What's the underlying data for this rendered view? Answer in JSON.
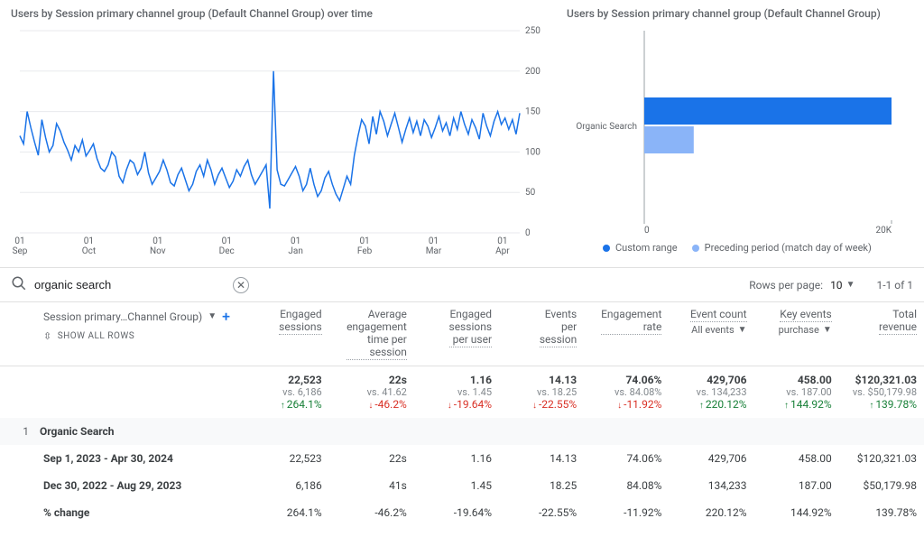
{
  "line_chart": {
    "title": "Users by Session primary channel group (Default Channel Group) over time",
    "type": "line",
    "y": {
      "min": 0,
      "max": 250,
      "ticks": [
        0,
        50,
        100,
        150,
        200,
        250
      ]
    },
    "x_ticks": [
      "01\nSep",
      "01\nOct",
      "01\nNov",
      "01\nDec",
      "01\nJan",
      "01\nFeb",
      "01\nMar",
      "01\nApr"
    ],
    "line_color": "#1a73e8",
    "grid_color": "#e8eaed",
    "values": [
      120,
      110,
      150,
      130,
      112,
      96,
      140,
      118,
      100,
      108,
      135,
      126,
      112,
      102,
      90,
      108,
      100,
      115,
      95,
      102,
      110,
      92,
      80,
      76,
      84,
      100,
      94,
      70,
      62,
      78,
      90,
      86,
      72,
      80,
      100,
      74,
      60,
      68,
      76,
      90,
      78,
      62,
      58,
      72,
      80,
      66,
      52,
      60,
      76,
      84,
      70,
      90,
      78,
      60,
      72,
      80,
      68,
      56,
      64,
      78,
      70,
      82,
      90,
      72,
      60,
      68,
      76,
      84,
      30,
      200,
      78,
      60,
      58,
      66,
      74,
      82,
      70,
      52,
      60,
      80,
      60,
      45,
      52,
      68,
      76,
      60,
      48,
      40,
      55,
      70,
      60,
      96,
      120,
      140,
      132,
      110,
      144,
      122,
      150,
      138,
      120,
      134,
      148,
      130,
      112,
      128,
      142,
      124,
      138,
      120,
      140,
      132,
      118,
      130,
      144,
      126,
      136,
      120,
      142,
      128,
      150,
      134,
      122,
      140,
      130,
      116,
      148,
      132,
      120,
      138,
      150,
      134,
      142,
      128,
      140,
      122,
      148
    ]
  },
  "bar_chart": {
    "title": "Users by Session primary channel group (Default Channel Group)",
    "type": "bar",
    "category": "Organic Search",
    "main_value": 20000,
    "prev_value": 4000,
    "x": {
      "min": 0,
      "max": 20000,
      "ticks": [
        0,
        20000
      ],
      "tick_labels": [
        "0",
        "20K"
      ]
    },
    "colors": {
      "main": "#1a73e8",
      "prev": "#8ab4f8"
    },
    "legend": [
      "Custom range",
      "Preceding period (match day of week)"
    ]
  },
  "search": {
    "value": "organic search",
    "rows_per_page_label": "Rows per page:",
    "rows_per_page_value": "10",
    "range_label": "1-1 of 1"
  },
  "table": {
    "dimension_label": "Session primary…Channel Group)",
    "show_all": "SHOW ALL ROWS",
    "columns": [
      {
        "head": "Engaged sessions"
      },
      {
        "head": "Average engagement time per session"
      },
      {
        "head": "Engaged sessions per user"
      },
      {
        "head": "Events per session"
      },
      {
        "head": "Engagement rate"
      },
      {
        "head": "Event count",
        "sub": "All events"
      },
      {
        "head": "Key events",
        "sub": "purchase"
      },
      {
        "head": "Total revenue"
      }
    ],
    "totals": {
      "values": [
        "22,523",
        "22s",
        "1.16",
        "14.13",
        "74.06%",
        "429,706",
        "458.00",
        "$120,321.03"
      ],
      "vs": [
        "vs. 6,186",
        "vs. 41.62",
        "vs. 1.45",
        "vs. 18.25",
        "vs. 84.08%",
        "vs. 134,233",
        "vs. 187.00",
        "vs. $50,179.98"
      ],
      "pct": [
        {
          "v": "264.1%",
          "d": "up"
        },
        {
          "v": "-46.2%",
          "d": "down"
        },
        {
          "v": "-19.64%",
          "d": "down"
        },
        {
          "v": "-22.55%",
          "d": "down"
        },
        {
          "v": "-11.92%",
          "d": "down"
        },
        {
          "v": "220.12%",
          "d": "up"
        },
        {
          "v": "144.92%",
          "d": "up"
        },
        {
          "v": "139.78%",
          "d": "up"
        }
      ]
    },
    "rows": [
      {
        "idx": "1",
        "label": "Organic Search"
      },
      {
        "label": "Sep 1, 2023 - Apr 30, 2024",
        "values": [
          "22,523",
          "22s",
          "1.16",
          "14.13",
          "74.06%",
          "429,706",
          "458.00",
          "$120,321.03"
        ]
      },
      {
        "label": "Dec 30, 2022 - Aug 29, 2023",
        "values": [
          "6,186",
          "41s",
          "1.45",
          "18.25",
          "84.08%",
          "134,233",
          "187.00",
          "$50,179.98"
        ]
      },
      {
        "label": "% change",
        "values": [
          "264.1%",
          "-46.2%",
          "-19.64%",
          "-22.55%",
          "-11.92%",
          "220.12%",
          "144.92%",
          "139.78%"
        ]
      }
    ]
  }
}
